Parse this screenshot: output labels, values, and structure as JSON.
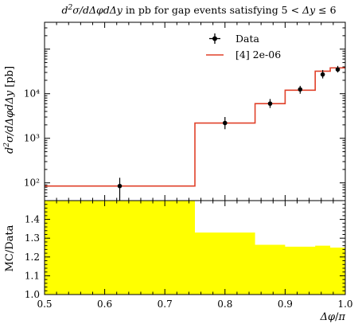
{
  "chart_data": [
    {
      "type": "line",
      "title": "d²σ/dΔφdΔy in pb for gap events satisfying 5 < Δy ≤ 6",
      "ylabel": "d²σ/dΔφdΔy [pb]",
      "yscale": "log",
      "ylim": [
        40,
        400000
      ],
      "y_ticks": [
        100,
        1000,
        10000
      ],
      "y_tick_labels": [
        "10²",
        "10³",
        "10⁴"
      ],
      "legend_position": "top-right",
      "legend": [
        "Data",
        "[4] 2e-06"
      ],
      "series": [
        {
          "name": "Data",
          "kind": "points-with-errors",
          "color": "#000000",
          "points": [
            {
              "x": 0.625,
              "y": 85,
              "ylow": 38,
              "yhigh": 130
            },
            {
              "x": 0.8,
              "y": 2200,
              "ylow": 1600,
              "yhigh": 3000
            },
            {
              "x": 0.875,
              "y": 6000,
              "ylow": 4800,
              "yhigh": 7600
            },
            {
              "x": 0.925,
              "y": 12500,
              "ylow": 10000,
              "yhigh": 15000
            },
            {
              "x": 0.9625,
              "y": 27000,
              "ylow": 22000,
              "yhigh": 34000
            },
            {
              "x": 0.9875,
              "y": 35000,
              "ylow": 30000,
              "yhigh": 42000
            }
          ]
        },
        {
          "name": "[4] 2e-06",
          "kind": "step",
          "color": "#e0412a",
          "bin_edges": [
            0.5,
            0.75,
            0.85,
            0.9,
            0.95,
            0.975,
            1.0
          ],
          "values": [
            85,
            2200,
            6000,
            12000,
            32000,
            38000
          ]
        }
      ]
    },
    {
      "type": "area",
      "ylabel": "MC/Data",
      "xlabel": "Δφ/π",
      "xlim": [
        0.5,
        1.0
      ],
      "ylim": [
        1.0,
        1.5
      ],
      "x_ticks": [
        0.5,
        0.6,
        0.7,
        0.8,
        0.9,
        1.0
      ],
      "y_ticks": [
        1.0,
        1.1,
        1.2,
        1.3,
        1.4
      ],
      "fill_color": "#ffff00",
      "bin_edges": [
        0.5,
        0.75,
        0.85,
        0.9,
        0.95,
        0.975,
        1.0
      ],
      "values": [
        1.6,
        1.33,
        1.265,
        1.255,
        1.26,
        1.25
      ]
    }
  ]
}
